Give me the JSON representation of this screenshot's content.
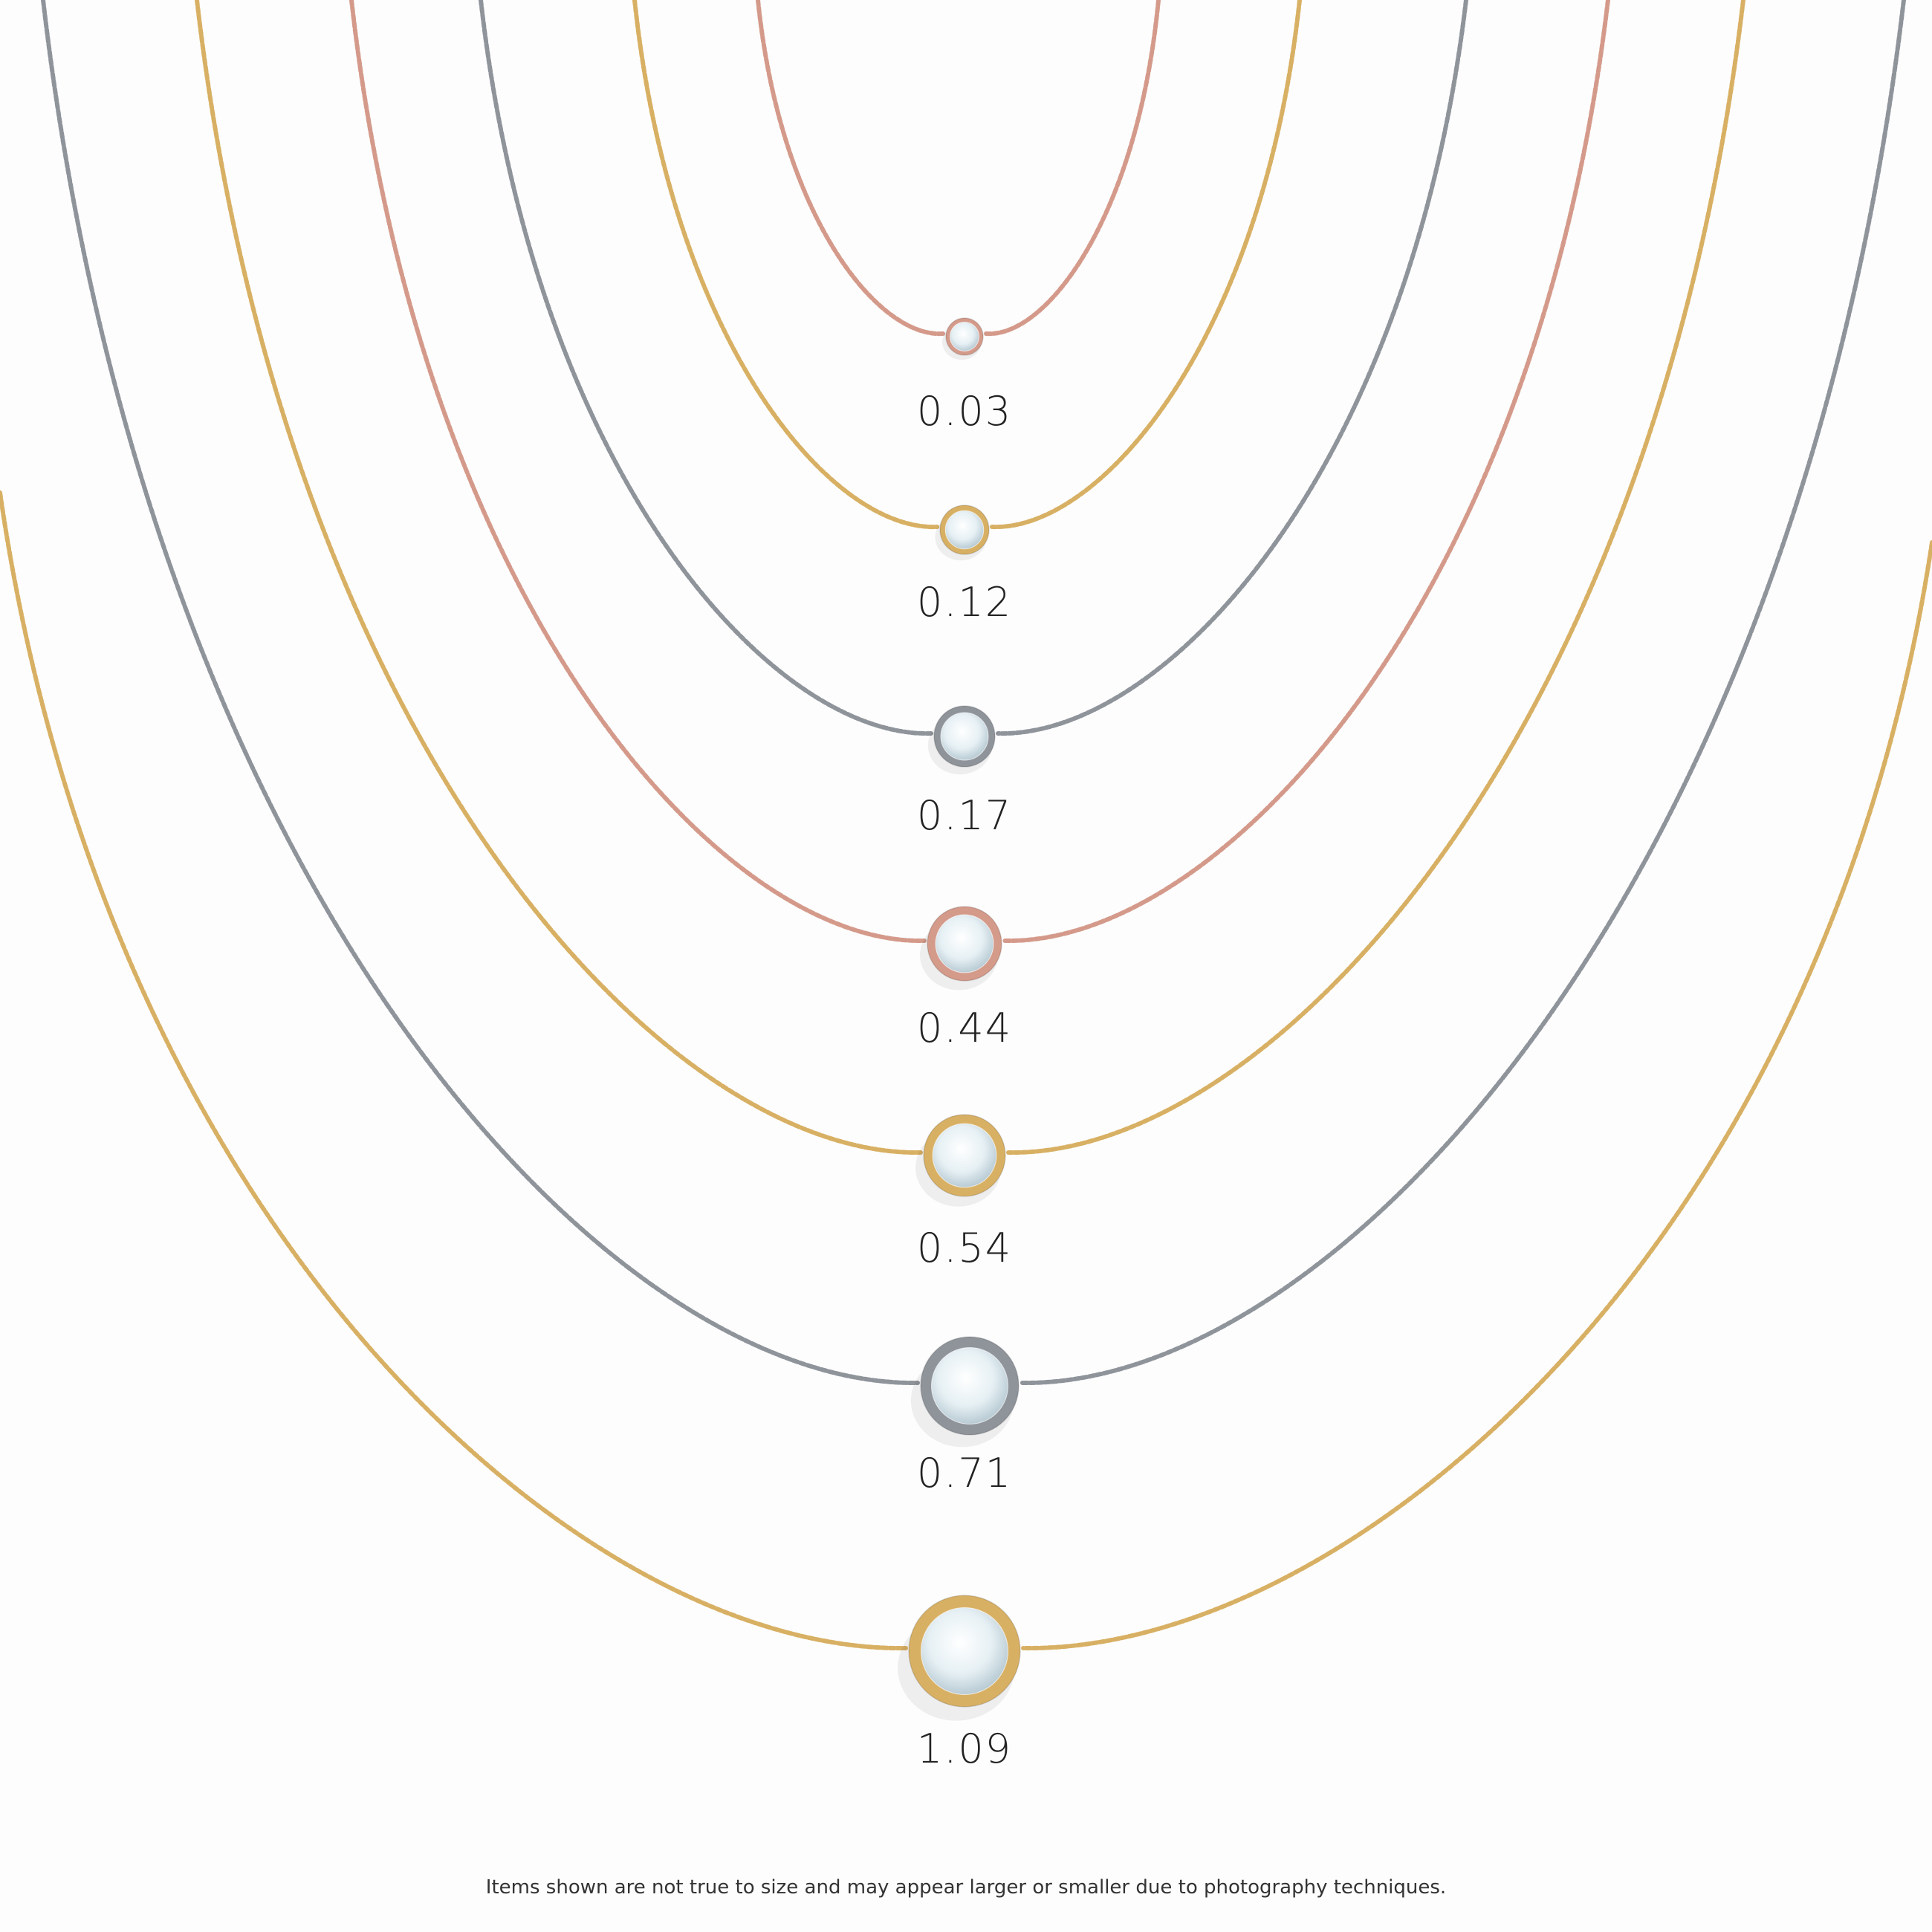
{
  "necklaces": [
    {
      "carat": "0.03",
      "metal": "rose gold",
      "color": "#d49a8a"
    },
    {
      "carat": "0.12",
      "metal": "yellow gold",
      "color": "#d8b064"
    },
    {
      "carat": "0.17",
      "metal": "white gold",
      "color": "#8f949b"
    },
    {
      "carat": "0.44",
      "metal": "rose gold",
      "color": "#d49a8a"
    },
    {
      "carat": "0.54",
      "metal": "yellow gold",
      "color": "#d8b064"
    },
    {
      "carat": "0.71",
      "metal": "white gold",
      "color": "#8f949b"
    },
    {
      "carat": "1.09",
      "metal": "yellow gold",
      "color": "#d8b064"
    }
  ],
  "diamond_color": "#e6f0f4",
  "footer": {
    "disclaimer": "Items shown are not true to size and may appear larger or smaller due to photography techniques."
  }
}
